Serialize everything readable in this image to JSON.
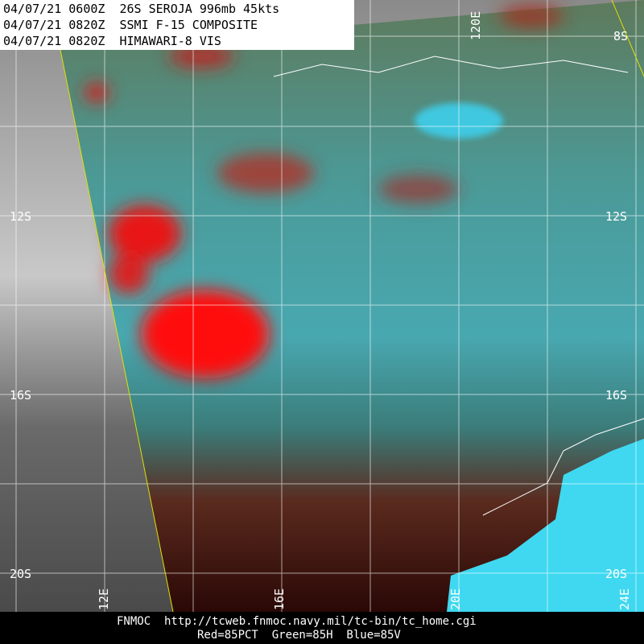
{
  "header": {
    "lines": [
      "04/07/21 0600Z  26S SEROJA 996mb 45kts",
      "04/07/21 0820Z  SSMI F-15 COMPOSITE",
      "04/07/21 0820Z  HIMAWARI-8 VIS"
    ]
  },
  "lat_labels": {
    "left": [
      "12S",
      "16S",
      "20S"
    ],
    "right": [
      "8S",
      "12S",
      "16S",
      "20S"
    ]
  },
  "lon_labels": {
    "top": [
      "120E"
    ],
    "bottom": [
      "12E",
      "16E",
      "20E",
      "24E"
    ]
  },
  "footer": {
    "source": "FNMOC  http://tcweb.fnmoc.navy.mil/tc-bin/tc_home.cgi",
    "legend": "Red=85PCT  Green=85H  Blue=85V"
  }
}
